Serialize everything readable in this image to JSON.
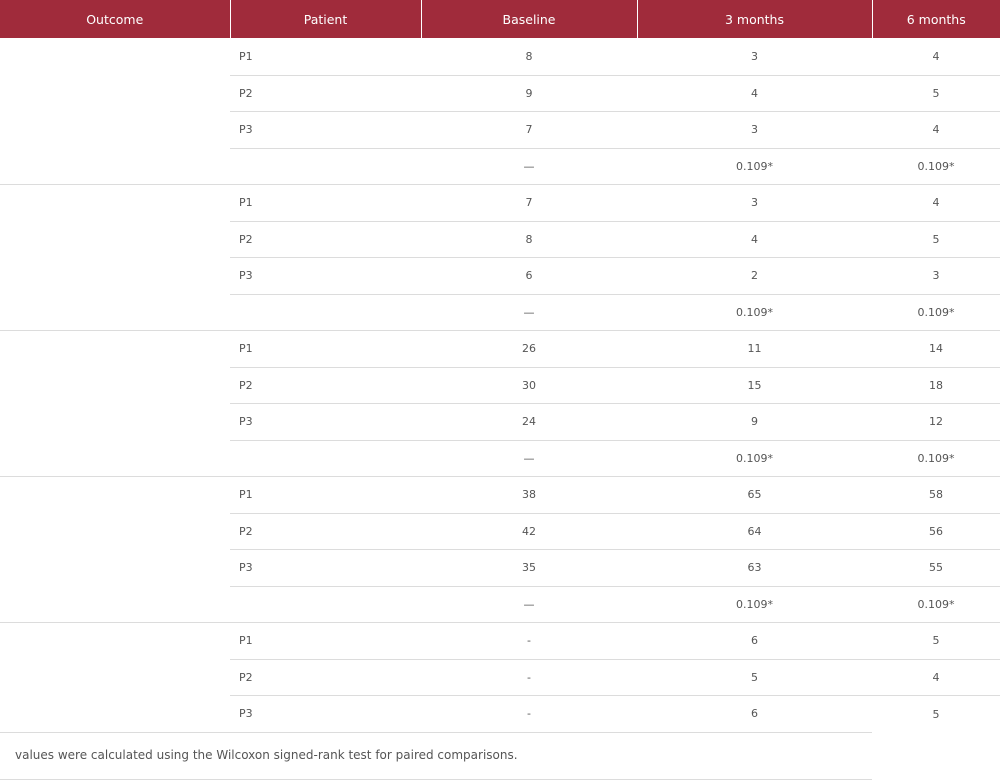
{
  "headers": {
    "outcome": "Outcome",
    "patient": "Patient",
    "baseline": "Baseline",
    "m3": "3 months",
    "m6": "6 months"
  },
  "groups": [
    {
      "outcome": "",
      "rows": [
        {
          "patient": "P1",
          "baseline": "8",
          "m3": "3",
          "m6": "4"
        },
        {
          "patient": "P2",
          "baseline": "9",
          "m3": "4",
          "m6": "5"
        },
        {
          "patient": "P3",
          "baseline": "7",
          "m3": "3",
          "m6": "4"
        }
      ],
      "pvalue": {
        "patient": "",
        "baseline": "—",
        "m3": "0.109*",
        "m6": "0.109*"
      }
    },
    {
      "outcome": "",
      "rows": [
        {
          "patient": "P1",
          "baseline": "7",
          "m3": "3",
          "m6": "4"
        },
        {
          "patient": "P2",
          "baseline": "8",
          "m3": "4",
          "m6": "5"
        },
        {
          "patient": "P3",
          "baseline": "6",
          "m3": "2",
          "m6": "3"
        }
      ],
      "pvalue": {
        "patient": "",
        "baseline": "—",
        "m3": "0.109*",
        "m6": "0.109*"
      }
    },
    {
      "outcome": "",
      "rows": [
        {
          "patient": "P1",
          "baseline": "26",
          "m3": "11",
          "m6": "14"
        },
        {
          "patient": "P2",
          "baseline": "30",
          "m3": "15",
          "m6": "18"
        },
        {
          "patient": "P3",
          "baseline": "24",
          "m3": "9",
          "m6": "12"
        }
      ],
      "pvalue": {
        "patient": "",
        "baseline": "—",
        "m3": "0.109*",
        "m6": "0.109*"
      }
    },
    {
      "outcome": "",
      "rows": [
        {
          "patient": "P1",
          "baseline": "38",
          "m3": "65",
          "m6": "58"
        },
        {
          "patient": "P2",
          "baseline": "42",
          "m3": "64",
          "m6": "56"
        },
        {
          "patient": "P3",
          "baseline": "35",
          "m3": "63",
          "m6": "55"
        }
      ],
      "pvalue": {
        "patient": "",
        "baseline": "—",
        "m3": "0.109*",
        "m6": "0.109*"
      }
    },
    {
      "outcome": "",
      "rows": [
        {
          "patient": "P1",
          "baseline": "-",
          "m3": "6",
          "m6": "5"
        },
        {
          "patient": "P2",
          "baseline": "-",
          "m3": "5",
          "m6": "4"
        },
        {
          "patient": "P3",
          "baseline": "-",
          "m3": "6",
          "m6": "5"
        }
      ]
    }
  ],
  "footnote": "values were calculated using the Wilcoxon signed-rank test for paired comparisons."
}
